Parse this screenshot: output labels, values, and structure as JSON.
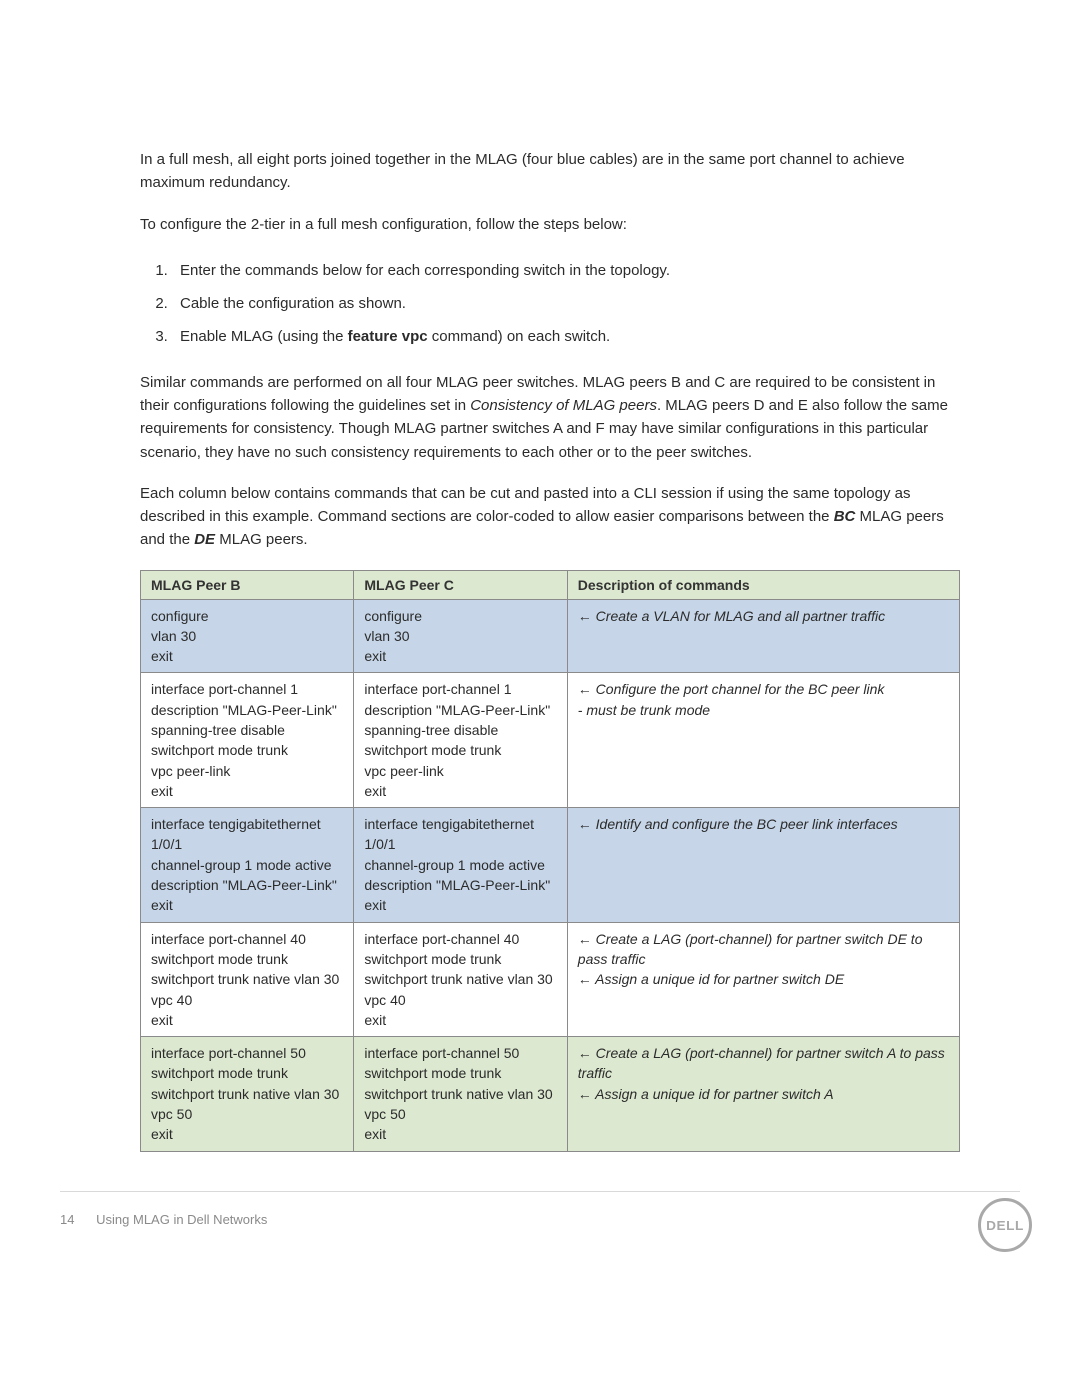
{
  "para1": "In a full mesh, all eight ports joined together in the MLAG (four blue cables) are in the same port channel to achieve maximum redundancy.",
  "para2": "To configure the 2-tier in a full mesh configuration, follow the steps below:",
  "steps": {
    "s1": "Enter the commands below for each corresponding switch in the topology.",
    "s2": "Cable the configuration as shown.",
    "s3_a": "Enable MLAG (using the ",
    "s3_b": "feature vpc",
    "s3_c": " command) on each switch."
  },
  "para3_a": "Similar commands are performed on all four MLAG peer switches. MLAG peers B and C are required to be consistent in their configurations following the guidelines set in ",
  "para3_b": "Consistency of MLAG peers",
  "para3_c": ". MLAG peers D and E also follow the same requirements for consistency. Though MLAG partner switches A and F may have similar configurations in this particular scenario, they have no such consistency requirements to each other or to the peer switches.",
  "para4_a": "Each column below contains commands that can be cut and pasted into a CLI session if using the same topology as described in this example. Command sections are color-coded to allow easier comparisons between the ",
  "para4_b": "BC",
  "para4_c": " MLAG peers and the ",
  "para4_d": "DE",
  "para4_e": " MLAG peers.",
  "table": {
    "headers": {
      "h1": "MLAG Peer B",
      "h2": "MLAG Peer C",
      "h3": "Description of commands"
    },
    "rows": [
      {
        "cls": "row-blue",
        "b": "configure\nvlan 30\nexit",
        "c": "configure\nvlan 30\nexit",
        "d": "← Create a VLAN for MLAG and all partner traffic"
      },
      {
        "cls": "row-white",
        "b": "interface port-channel 1\ndescription \"MLAG-Peer-Link\"\nspanning-tree disable\nswitchport mode trunk\nvpc peer-link\nexit",
        "c": "interface port-channel 1\ndescription \"MLAG-Peer-Link\"\nspanning-tree disable\nswitchport mode trunk\nvpc peer-link\nexit",
        "d": "← Configure the port channel for the BC peer link\n       - must be trunk mode"
      },
      {
        "cls": "row-blue",
        "b": "interface tengigabitethernet 1/0/1\nchannel-group 1 mode active\ndescription \"MLAG-Peer-Link\"\nexit",
        "c": "interface tengigabitethernet 1/0/1\nchannel-group 1 mode active\ndescription \"MLAG-Peer-Link\"\nexit",
        "d": "← Identify and configure the BC peer link interfaces"
      },
      {
        "cls": "row-white",
        "b": "interface port-channel 40\nswitchport mode trunk\nswitchport trunk native vlan 30\nvpc 40\nexit",
        "c": "interface port-channel 40\nswitchport mode trunk\nswitchport trunk native vlan 30\nvpc 40\nexit",
        "d": "← Create a LAG (port-channel) for partner switch DE to pass traffic\n← Assign a unique id for partner switch DE"
      },
      {
        "cls": "row-green",
        "b": "interface port-channel 50\nswitchport mode trunk\nswitchport trunk native vlan 30\nvpc 50\nexit",
        "c": "interface port-channel 50\nswitchport mode trunk\nswitchport trunk native vlan 30\nvpc 50\nexit",
        "d": "← Create a LAG (port-channel) for partner switch A to pass traffic\n← Assign a unique id for partner switch A"
      }
    ]
  },
  "footer": {
    "page": "14",
    "title": "Using MLAG in Dell Networks",
    "logo": "DELL"
  }
}
